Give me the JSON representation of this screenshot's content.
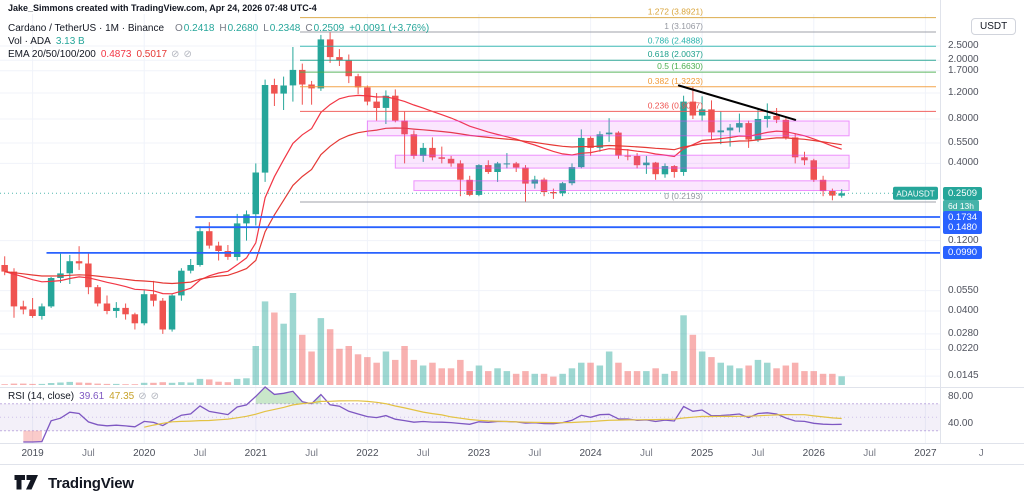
{
  "attribution": "Jake_Simmons created with TradingView.com, Apr 24, 2026 07:48 UTC-4",
  "legend": {
    "title": "Cardano / TetherUS · 1M · Binance",
    "ohlc": [
      {
        "k": "O",
        "v": "0.2418"
      },
      {
        "k": "H",
        "v": "0.2680"
      },
      {
        "k": "L",
        "v": "0.2348"
      },
      {
        "k": "C",
        "v": "0.2509"
      }
    ],
    "change": "+0.0091 (+3.76%)",
    "volume": {
      "label": "Vol · ADA",
      "value": "3.13 B"
    },
    "ema": {
      "label": "EMA 20/50/100/200",
      "values": [
        "0.4873",
        "0.5017"
      ]
    }
  },
  "rsi_legend": {
    "label": "RSI (14, close)",
    "values": [
      "39.61",
      "47.35"
    ]
  },
  "axis": {
    "unit": "USDT",
    "price_ticks": [
      "2.5000",
      "2.0000",
      "1.7000",
      "1.2000",
      "0.8000",
      "0.5500",
      "0.4000",
      "0.1200",
      "0.0550",
      "0.0400",
      "0.0280",
      "0.0220",
      "0.0145"
    ],
    "last": {
      "symbol": "ADAUSDT",
      "price": "0.2509",
      "countdown": "6d 13h"
    },
    "lines": [
      "0.1734",
      "0.1480",
      "0.0990"
    ],
    "rsi_ticks": [
      "80.00",
      "40.00"
    ]
  },
  "time_axis": [
    {
      "l": "2019",
      "i": 3
    },
    {
      "l": "Jul",
      "i": 9
    },
    {
      "l": "2020",
      "i": 15
    },
    {
      "l": "Jul",
      "i": 21
    },
    {
      "l": "2021",
      "i": 27
    },
    {
      "l": "Jul",
      "i": 33
    },
    {
      "l": "2022",
      "i": 39
    },
    {
      "l": "Jul",
      "i": 45
    },
    {
      "l": "2023",
      "i": 51
    },
    {
      "l": "Jul",
      "i": 57
    },
    {
      "l": "2024",
      "i": 63
    },
    {
      "l": "Jul",
      "i": 69
    },
    {
      "l": "2025",
      "i": 75
    },
    {
      "l": "Jul",
      "i": 81
    },
    {
      "l": "2026",
      "i": 87
    },
    {
      "l": "Jul",
      "i": 93
    },
    {
      "l": "2027",
      "i": 99
    },
    {
      "l": "J",
      "i": 105
    }
  ],
  "footer": {
    "brand": "TradingView"
  },
  "colors": {
    "up": "#26a69a",
    "down": "#ef5350",
    "ema1": "#f23645",
    "ema2": "#e53935",
    "rsi": "#7e57c2",
    "rsi_ma": "#e3c243",
    "alert_line": "#2962ff",
    "last_badge": "#26a69a",
    "box_fill": "rgba(224,64,251,0.13)",
    "box_border": "rgba(224,64,251,0.55)",
    "trendline": "#000000"
  },
  "chart_data": {
    "type": "candlestick",
    "title": "Cardano / TetherUS 1M Binance",
    "scale": "log",
    "x_unit": "month",
    "price_unit": "USDT",
    "last_price": 0.2509,
    "candles": {
      "columns": [
        "month",
        "open",
        "high",
        "low",
        "close",
        "volume_billion"
      ],
      "rows": [
        [
          "2018-10",
          0.082,
          0.094,
          0.07,
          0.074,
          0.3
        ],
        [
          "2018-11",
          0.074,
          0.078,
          0.036,
          0.043,
          0.5
        ],
        [
          "2018-12",
          0.043,
          0.047,
          0.038,
          0.041,
          0.5
        ],
        [
          "2019-01",
          0.041,
          0.049,
          0.036,
          0.037,
          0.4
        ],
        [
          "2019-02",
          0.037,
          0.045,
          0.035,
          0.043,
          0.4
        ],
        [
          "2019-03",
          0.043,
          0.068,
          0.042,
          0.067,
          0.7
        ],
        [
          "2019-04",
          0.067,
          0.098,
          0.062,
          0.072,
          0.9
        ],
        [
          "2019-05",
          0.072,
          0.096,
          0.061,
          0.087,
          1.1
        ],
        [
          "2019-06",
          0.087,
          0.11,
          0.076,
          0.084,
          0.9
        ],
        [
          "2019-07",
          0.084,
          0.098,
          0.052,
          0.058,
          0.8
        ],
        [
          "2019-08",
          0.058,
          0.06,
          0.043,
          0.045,
          0.5
        ],
        [
          "2019-09",
          0.045,
          0.051,
          0.038,
          0.04,
          0.4
        ],
        [
          "2019-10",
          0.04,
          0.046,
          0.036,
          0.042,
          0.4
        ],
        [
          "2019-11",
          0.042,
          0.045,
          0.035,
          0.038,
          0.3
        ],
        [
          "2019-12",
          0.038,
          0.039,
          0.03,
          0.033,
          0.3
        ],
        [
          "2020-01",
          0.033,
          0.056,
          0.032,
          0.052,
          0.8
        ],
        [
          "2020-02",
          0.052,
          0.064,
          0.043,
          0.047,
          0.8
        ],
        [
          "2020-03",
          0.047,
          0.049,
          0.028,
          0.03,
          1.0
        ],
        [
          "2020-04",
          0.03,
          0.052,
          0.029,
          0.051,
          0.8
        ],
        [
          "2020-05",
          0.051,
          0.078,
          0.047,
          0.075,
          1.0
        ],
        [
          "2020-06",
          0.075,
          0.09,
          0.072,
          0.082,
          0.9
        ],
        [
          "2020-07",
          0.082,
          0.15,
          0.08,
          0.139,
          2.2
        ],
        [
          "2020-08",
          0.139,
          0.16,
          0.106,
          0.111,
          2.0
        ],
        [
          "2020-09",
          0.111,
          0.118,
          0.088,
          0.102,
          1.2
        ],
        [
          "2020-10",
          0.102,
          0.112,
          0.089,
          0.093,
          1.0
        ],
        [
          "2020-11",
          0.093,
          0.182,
          0.088,
          0.157,
          2.2
        ],
        [
          "2020-12",
          0.157,
          0.192,
          0.12,
          0.181,
          2.4
        ],
        [
          "2021-01",
          0.181,
          0.4,
          0.152,
          0.347,
          14
        ],
        [
          "2021-02",
          0.347,
          1.48,
          0.3,
          1.36,
          30
        ],
        [
          "2021-03",
          1.36,
          1.5,
          0.98,
          1.19,
          26
        ],
        [
          "2021-04",
          1.19,
          1.55,
          0.92,
          1.35,
          22
        ],
        [
          "2021-05",
          1.35,
          2.46,
          1.05,
          1.72,
          33
        ],
        [
          "2021-06",
          1.72,
          1.9,
          1.0,
          1.37,
          18
        ],
        [
          "2021-07",
          1.37,
          1.45,
          1.0,
          1.29,
          12
        ],
        [
          "2021-08",
          1.29,
          2.97,
          1.24,
          2.77,
          24
        ],
        [
          "2021-09",
          2.77,
          3.1,
          1.92,
          2.1,
          20
        ],
        [
          "2021-10",
          2.1,
          2.38,
          1.83,
          1.99,
          13
        ],
        [
          "2021-11",
          1.99,
          2.19,
          1.4,
          1.56,
          14
        ],
        [
          "2021-12",
          1.56,
          1.62,
          1.18,
          1.31,
          11
        ],
        [
          "2022-01",
          1.31,
          1.35,
          0.99,
          1.05,
          10
        ],
        [
          "2022-02",
          1.05,
          1.2,
          0.78,
          0.95,
          8
        ],
        [
          "2022-03",
          0.95,
          1.25,
          0.74,
          1.15,
          12
        ],
        [
          "2022-04",
          1.15,
          1.27,
          0.76,
          0.78,
          9
        ],
        [
          "2022-05",
          0.78,
          0.9,
          0.4,
          0.63,
          14
        ],
        [
          "2022-06",
          0.63,
          0.67,
          0.43,
          0.45,
          9
        ],
        [
          "2022-07",
          0.45,
          0.55,
          0.41,
          0.51,
          7
        ],
        [
          "2022-08",
          0.51,
          0.6,
          0.42,
          0.44,
          8
        ],
        [
          "2022-09",
          0.44,
          0.52,
          0.4,
          0.43,
          6
        ],
        [
          "2022-10",
          0.43,
          0.45,
          0.38,
          0.4,
          6
        ],
        [
          "2022-11",
          0.4,
          0.42,
          0.24,
          0.31,
          9
        ],
        [
          "2022-12",
          0.31,
          0.33,
          0.24,
          0.245,
          5
        ],
        [
          "2023-01",
          0.245,
          0.395,
          0.24,
          0.39,
          7
        ],
        [
          "2023-02",
          0.39,
          0.42,
          0.34,
          0.35,
          5
        ],
        [
          "2023-03",
          0.35,
          0.41,
          0.3,
          0.4,
          6
        ],
        [
          "2023-04",
          0.4,
          0.47,
          0.37,
          0.4,
          5
        ],
        [
          "2023-05",
          0.4,
          0.41,
          0.35,
          0.375,
          4
        ],
        [
          "2023-06",
          0.375,
          0.39,
          0.22,
          0.292,
          5
        ],
        [
          "2023-07",
          0.292,
          0.33,
          0.27,
          0.311,
          4
        ],
        [
          "2023-08",
          0.311,
          0.32,
          0.24,
          0.256,
          4
        ],
        [
          "2023-09",
          0.256,
          0.27,
          0.23,
          0.251,
          3
        ],
        [
          "2023-10",
          0.251,
          0.3,
          0.24,
          0.294,
          4
        ],
        [
          "2023-11",
          0.294,
          0.4,
          0.285,
          0.378,
          6
        ],
        [
          "2023-12",
          0.378,
          0.68,
          0.37,
          0.596,
          8
        ],
        [
          "2024-01",
          0.596,
          0.61,
          0.45,
          0.51,
          8
        ],
        [
          "2024-02",
          0.51,
          0.66,
          0.48,
          0.63,
          7
        ],
        [
          "2024-03",
          0.63,
          0.81,
          0.56,
          0.647,
          12
        ],
        [
          "2024-04",
          0.647,
          0.66,
          0.43,
          0.452,
          8
        ],
        [
          "2024-05",
          0.452,
          0.5,
          0.42,
          0.449,
          5
        ],
        [
          "2024-06",
          0.449,
          0.47,
          0.37,
          0.389,
          5
        ],
        [
          "2024-07",
          0.389,
          0.45,
          0.34,
          0.405,
          5
        ],
        [
          "2024-08",
          0.405,
          0.41,
          0.31,
          0.338,
          6
        ],
        [
          "2024-09",
          0.338,
          0.4,
          0.32,
          0.384,
          4
        ],
        [
          "2024-10",
          0.384,
          0.39,
          0.32,
          0.35,
          5
        ],
        [
          "2024-11",
          0.35,
          1.15,
          0.33,
          1.05,
          25
        ],
        [
          "2024-12",
          1.05,
          1.33,
          0.8,
          0.845,
          18
        ],
        [
          "2025-01",
          0.845,
          1.14,
          0.78,
          0.93,
          12
        ],
        [
          "2025-02",
          0.93,
          1.07,
          0.58,
          0.65,
          10
        ],
        [
          "2025-03",
          0.65,
          0.9,
          0.54,
          0.67,
          8
        ],
        [
          "2025-04",
          0.67,
          0.74,
          0.52,
          0.7,
          7
        ],
        [
          "2025-05",
          0.7,
          0.87,
          0.65,
          0.75,
          6
        ],
        [
          "2025-06",
          0.75,
          0.78,
          0.51,
          0.58,
          7
        ],
        [
          "2025-07",
          0.58,
          0.93,
          0.56,
          0.8,
          9
        ],
        [
          "2025-08",
          0.8,
          1.02,
          0.7,
          0.84,
          8
        ],
        [
          "2025-09",
          0.84,
          0.95,
          0.75,
          0.79,
          6
        ],
        [
          "2025-10",
          0.79,
          0.82,
          0.58,
          0.6,
          7
        ],
        [
          "2025-11",
          0.6,
          0.64,
          0.4,
          0.44,
          8
        ],
        [
          "2025-12",
          0.44,
          0.48,
          0.39,
          0.42,
          5
        ],
        [
          "2026-01",
          0.42,
          0.43,
          0.3,
          0.31,
          5
        ],
        [
          "2026-02",
          0.31,
          0.33,
          0.24,
          0.26,
          4
        ],
        [
          "2026-03",
          0.26,
          0.27,
          0.225,
          0.242,
          4
        ],
        [
          "2026-04",
          0.2418,
          0.268,
          0.2348,
          0.2509,
          3.13
        ]
      ]
    },
    "indicators": {
      "ema_periods": [
        20,
        50
      ],
      "rsi": {
        "period": 14,
        "current": 39.61,
        "ma_current": 47.35,
        "band": [
          70,
          30
        ]
      }
    },
    "fib_retracement": {
      "levels": [
        {
          "ratio": "1.272",
          "price": 3.8921,
          "color": "#d9a43a"
        },
        {
          "ratio": "1",
          "price": 3.1067,
          "color": "#9598a1"
        },
        {
          "ratio": "0.786",
          "price": 2.4888,
          "color": "#2bb3ad"
        },
        {
          "ratio": "0.618",
          "price": 2.0037,
          "color": "#1ca08c"
        },
        {
          "ratio": "0.5",
          "price": 1.663,
          "color": "#4caf50"
        },
        {
          "ratio": "0.382",
          "price": 1.3223,
          "color": "#f29b38"
        },
        {
          "ratio": "0.236",
          "price": 0.9007,
          "color": "#ef5350"
        },
        {
          "ratio": "0",
          "price": 0.2193,
          "color": "#9598a1"
        }
      ]
    },
    "zones": [
      {
        "from_i": 39,
        "to_i": 90.8,
        "top": 0.775,
        "bottom": 0.615
      },
      {
        "from_i": 42,
        "to_i": 90.8,
        "top": 0.455,
        "bottom": 0.372
      },
      {
        "from_i": 44,
        "to_i": 90.8,
        "top": 0.305,
        "bottom": 0.262
      }
    ],
    "support_lines": [
      {
        "price": 0.1734,
        "from_i": 20.5
      },
      {
        "price": 0.148,
        "from_i": 20.5
      },
      {
        "price": 0.099,
        "from_i": 4.5
      }
    ],
    "trendline": {
      "from_i": 72.5,
      "from_price": 1.35,
      "to_i": 85,
      "to_price": 0.79
    }
  }
}
